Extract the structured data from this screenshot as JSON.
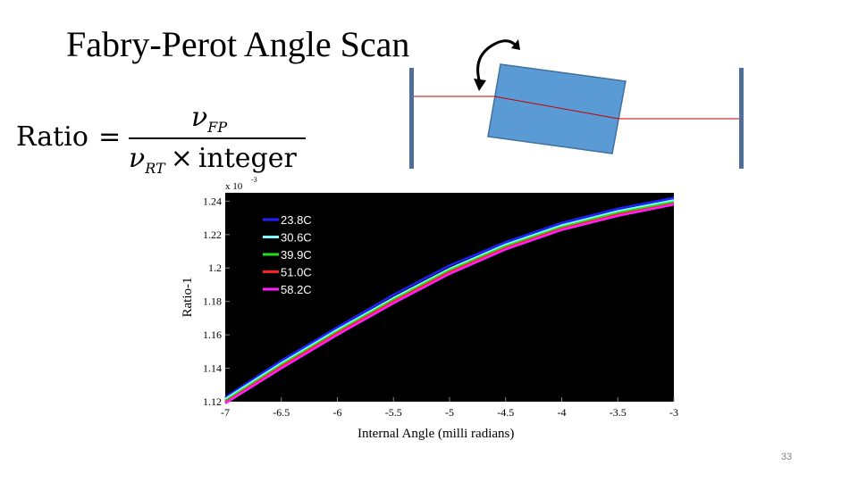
{
  "slide": {
    "title": "Fabry-Perot Angle Scan",
    "page_number": "33"
  },
  "formula": {
    "lhs": "Ratio",
    "equals": "=",
    "numerator_symbol": "ν",
    "numerator_subscript": "FP",
    "denominator_symbol": "ν",
    "denominator_subscript": "RT",
    "times": "×",
    "denominator_word": "integer"
  },
  "diagram": {
    "mirror_color": "#4f6e9a",
    "crystal_color": "#5b9bd5",
    "beam_color": "#c00000",
    "rotation_icon": "rotate-arrows-icon"
  },
  "chart_data": {
    "type": "line",
    "xlabel": "Internal Angle (milli radians)",
    "ylabel": "Ratio-1",
    "y_multiplier": "x 10",
    "y_multiplier_exponent": "-3",
    "xlim": [
      -7,
      -3
    ],
    "ylim": [
      1.12,
      1.245
    ],
    "xticks": [
      -7,
      -6.5,
      -6,
      -5.5,
      -5,
      -4.5,
      -4,
      -3.5,
      -3
    ],
    "yticks": [
      1.12,
      1.14,
      1.16,
      1.18,
      1.2,
      1.22,
      1.24
    ],
    "background": "#000000",
    "legend_position": "top-left",
    "x": [
      -7,
      -6.5,
      -6,
      -5.5,
      -5,
      -4.5,
      -4,
      -3.5,
      -3
    ],
    "series": [
      {
        "name": "23.8C",
        "color": "#1f1fff",
        "values": [
          1.1225,
          1.1445,
          1.1645,
          1.184,
          1.2015,
          1.2155,
          1.227,
          1.2355,
          1.242
        ]
      },
      {
        "name": "30.6C",
        "color": "#7fffff",
        "values": [
          1.1215,
          1.143,
          1.163,
          1.182,
          1.1995,
          1.214,
          1.2255,
          1.234,
          1.2405
        ]
      },
      {
        "name": "39.9C",
        "color": "#1fdf1f",
        "values": [
          1.1205,
          1.142,
          1.162,
          1.181,
          1.1985,
          1.213,
          1.2245,
          1.233,
          1.2395
        ]
      },
      {
        "name": "51.0C",
        "color": "#ff1f1f",
        "values": [
          1.1195,
          1.141,
          1.161,
          1.18,
          1.1975,
          1.212,
          1.2235,
          1.232,
          1.2385
        ]
      },
      {
        "name": "58.2C",
        "color": "#ff1fff",
        "values": [
          1.119,
          1.14,
          1.16,
          1.179,
          1.1965,
          1.2112,
          1.2228,
          1.2312,
          1.238
        ]
      }
    ]
  }
}
